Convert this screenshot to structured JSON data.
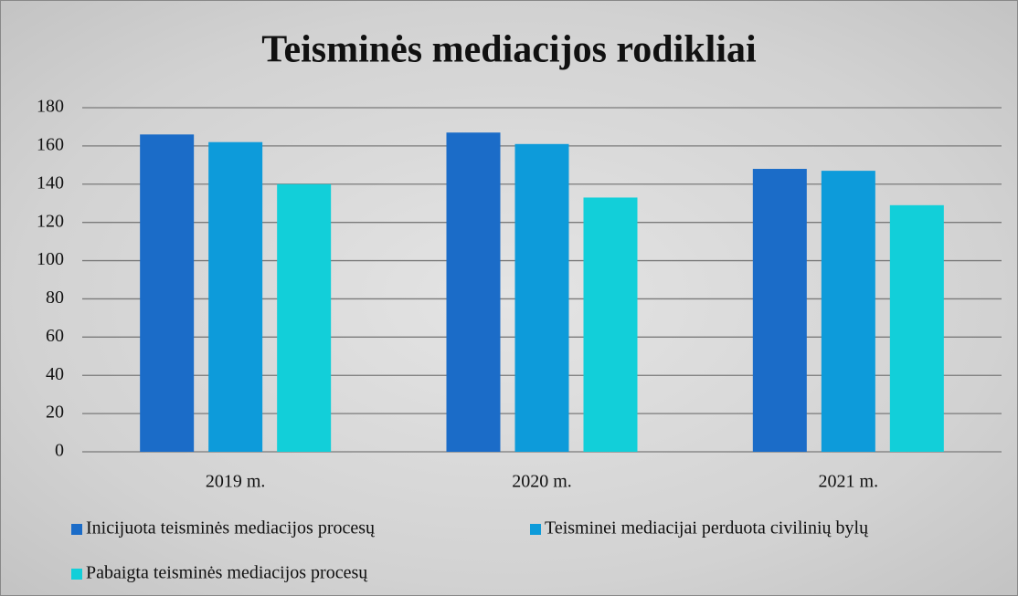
{
  "chart_data": {
    "type": "bar",
    "title": "Teisminės mediacijos rodikliai",
    "categories": [
      "2019 m.",
      "2020 m.",
      "2021 m."
    ],
    "series": [
      {
        "name": "Inicijuota teisminės mediacijos procesų",
        "color": "#1b6cc8",
        "values": [
          166,
          167,
          148
        ]
      },
      {
        "name": "Teisminei mediacijai perduota civilinių bylų",
        "color": "#0d9bda",
        "values": [
          162,
          161,
          147
        ]
      },
      {
        "name": "Pabaigta teisminės mediacijos procesų",
        "color": "#12cfd9",
        "values": [
          140,
          133,
          129
        ]
      }
    ],
    "ylim": [
      0,
      180
    ],
    "yticks": [
      0,
      20,
      40,
      60,
      80,
      100,
      120,
      140,
      160,
      180
    ],
    "grid": true,
    "legend": "bottom"
  }
}
